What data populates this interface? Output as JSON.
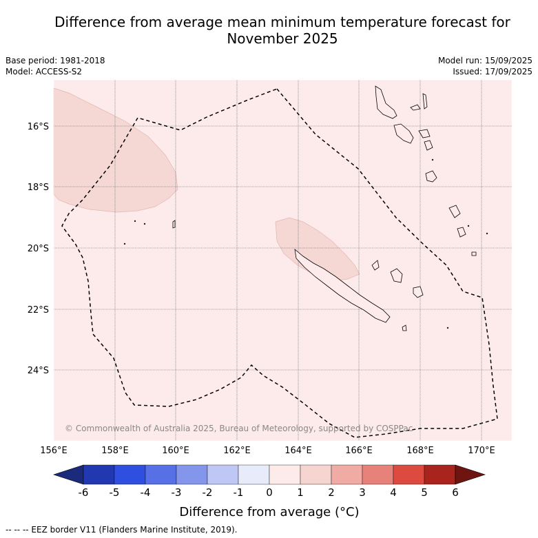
{
  "title": "Difference from average mean minimum temperature forecast for November 2025",
  "title_line1": "Difference from average mean minimum temperature forecast for",
  "title_line2": "November 2025",
  "meta_left": [
    "Base period: 1981-2018",
    "Model: ACCESS-S2"
  ],
  "meta_right": [
    "Model run: 15/09/2025",
    "Issued: 17/09/2025"
  ],
  "copyright": "© Commonwealth of Australia 2025, Bureau of Meteorology, supported by COSPPac",
  "lon_ticks": [
    "156°E",
    "158°E",
    "160°E",
    "162°E",
    "164°E",
    "166°E",
    "168°E",
    "170°E"
  ],
  "lat_ticks": [
    "16°S",
    "18°S",
    "20°S",
    "22°S",
    "24°S"
  ],
  "colorbar": {
    "title": "Difference from average (°C)",
    "ticks": [
      "-6",
      "-5",
      "-4",
      "-3",
      "-2",
      "-1",
      "0",
      "1",
      "2",
      "3",
      "4",
      "5",
      "6"
    ],
    "colors": [
      "#1b2a7a",
      "#2238b0",
      "#2f4fe0",
      "#5870e6",
      "#8496eb",
      "#bfc7f4",
      "#e8ebfa",
      "#fcebe9",
      "#f6d5d1",
      "#f0aba5",
      "#e6827a",
      "#dc4a40",
      "#a9241d",
      "#6e1512"
    ]
  },
  "map_colors": {
    "background": "#fcebea",
    "anomaly_1_2": "#f5d7d4"
  },
  "footnote": "--  --  -- EEZ border V11 (Flanders Marine Institute, 2019)."
}
